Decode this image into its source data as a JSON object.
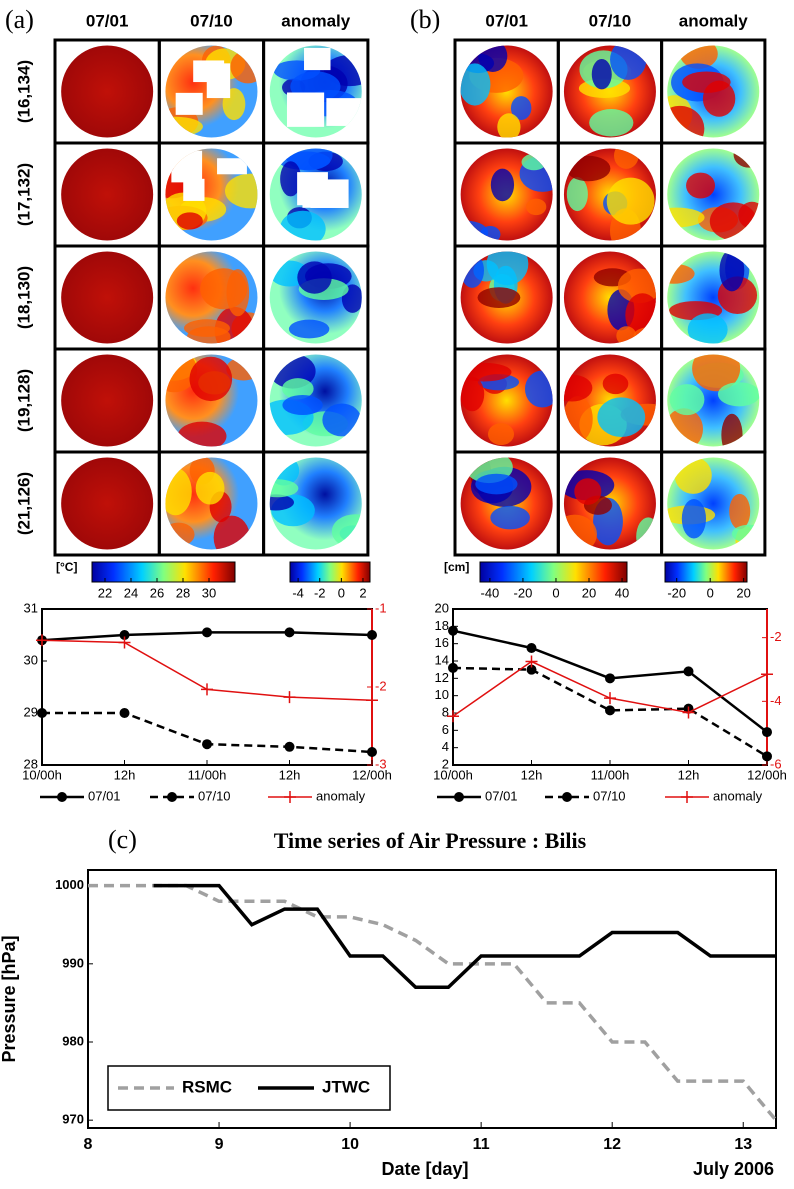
{
  "chart_data": [
    {
      "type": "line",
      "panel_label": "(a)",
      "map_columns": [
        "07/01",
        "07/10",
        "anomaly"
      ],
      "map_rows": [
        "(16,134)",
        "(17,132)",
        "(18,130)",
        "(19,128)",
        "(21,126)"
      ],
      "colorbars": [
        {
          "unit": "[°C]",
          "lim": [
            21,
            32
          ],
          "ticks": [
            22,
            24,
            26,
            28,
            30
          ]
        },
        {
          "lim": [
            -4.75,
            2.65
          ],
          "ticks": [
            -4,
            -2,
            0,
            2
          ]
        }
      ],
      "categories": [
        "10/00h",
        "12h",
        "11/00h",
        "12h",
        "12/00h"
      ],
      "series": [
        {
          "name": "07/01",
          "color": "#000000",
          "marker": "circle",
          "dash": false,
          "values": [
            30.4,
            30.5,
            30.55,
            30.55,
            30.5
          ]
        },
        {
          "name": "07/10",
          "color": "#000000",
          "marker": "circle",
          "dash": true,
          "values": [
            29.0,
            29.0,
            28.4,
            28.35,
            28.25
          ]
        },
        {
          "name": "anomaly",
          "color": "#e01010",
          "marker": "plus",
          "dash": false,
          "axis": "y2",
          "values": [
            -1.4,
            -1.43,
            -2.03,
            -2.13,
            -2.17
          ]
        }
      ],
      "ylim": [
        28,
        31
      ],
      "yticks": [
        28,
        29,
        30,
        31
      ],
      "y2lim": [
        -3,
        -1
      ],
      "y2ticks": [
        -3,
        -2,
        -1
      ]
    },
    {
      "type": "line",
      "panel_label": "(b)",
      "map_columns": [
        "07/01",
        "07/10",
        "anomaly"
      ],
      "colorbars": [
        {
          "unit": "[cm]",
          "lim": [
            -46,
            43
          ],
          "ticks": [
            -40,
            -20,
            0,
            20,
            40
          ]
        },
        {
          "lim": [
            -27,
            22
          ],
          "ticks": [
            -20,
            0,
            20
          ]
        }
      ],
      "categories": [
        "10/00h",
        "12h",
        "11/00h",
        "12h",
        "12/00h"
      ],
      "series": [
        {
          "name": "07/01",
          "color": "#000000",
          "marker": "circle",
          "dash": false,
          "values": [
            17.5,
            15.5,
            12,
            12.8,
            5.8
          ]
        },
        {
          "name": "07/10",
          "color": "#000000",
          "marker": "circle",
          "dash": true,
          "values": [
            13.2,
            13,
            8.3,
            8.5,
            3
          ]
        },
        {
          "name": "anomaly",
          "color": "#e01010",
          "marker": "plus",
          "dash": false,
          "axis": "y2",
          "values": [
            -4.47,
            -2.75,
            -3.9,
            -4.35,
            -3.15
          ]
        }
      ],
      "ylim": [
        2,
        20
      ],
      "yticks": [
        2,
        4,
        6,
        8,
        10,
        12,
        14,
        16,
        18,
        20
      ],
      "y2lim": [
        -6,
        -1.1
      ],
      "y2ticks": [
        -6,
        -4,
        -2
      ]
    },
    {
      "type": "step",
      "panel_label": "(c)",
      "title": "Time series of Air Pressure : Bilis",
      "x_label": "Date [day]",
      "y_label": "Pressure [hPa]",
      "annotation": "July 2006",
      "x": [
        8,
        8.25,
        8.5,
        8.75,
        9,
        9.25,
        9.5,
        9.75,
        10,
        10.25,
        10.5,
        10.75,
        11,
        11.25,
        11.5,
        11.75,
        12,
        12.25,
        12.5,
        12.75,
        13,
        13.25
      ],
      "series": [
        {
          "name": "RSMC",
          "color": "#a0a0a0",
          "dash": true,
          "values": [
            1000,
            1000,
            1000,
            1000,
            998,
            998,
            998,
            996,
            996,
            995,
            993,
            990,
            990,
            990,
            985,
            985,
            980,
            980,
            975,
            975,
            975,
            970
          ]
        },
        {
          "name": "JTWC",
          "color": "#000000",
          "dash": false,
          "values": [
            null,
            null,
            1000,
            1000,
            1000,
            995,
            997,
            997,
            991,
            991,
            987,
            987,
            991,
            991,
            991,
            991,
            994,
            994,
            994,
            991,
            991,
            991
          ]
        }
      ],
      "xlim": [
        8,
        13.25
      ],
      "xticks": [
        8,
        9,
        10,
        11,
        12,
        13
      ],
      "ylim": [
        969,
        1002
      ],
      "yticks": [
        970,
        980,
        990,
        1000
      ],
      "legend": "lower-left"
    }
  ]
}
